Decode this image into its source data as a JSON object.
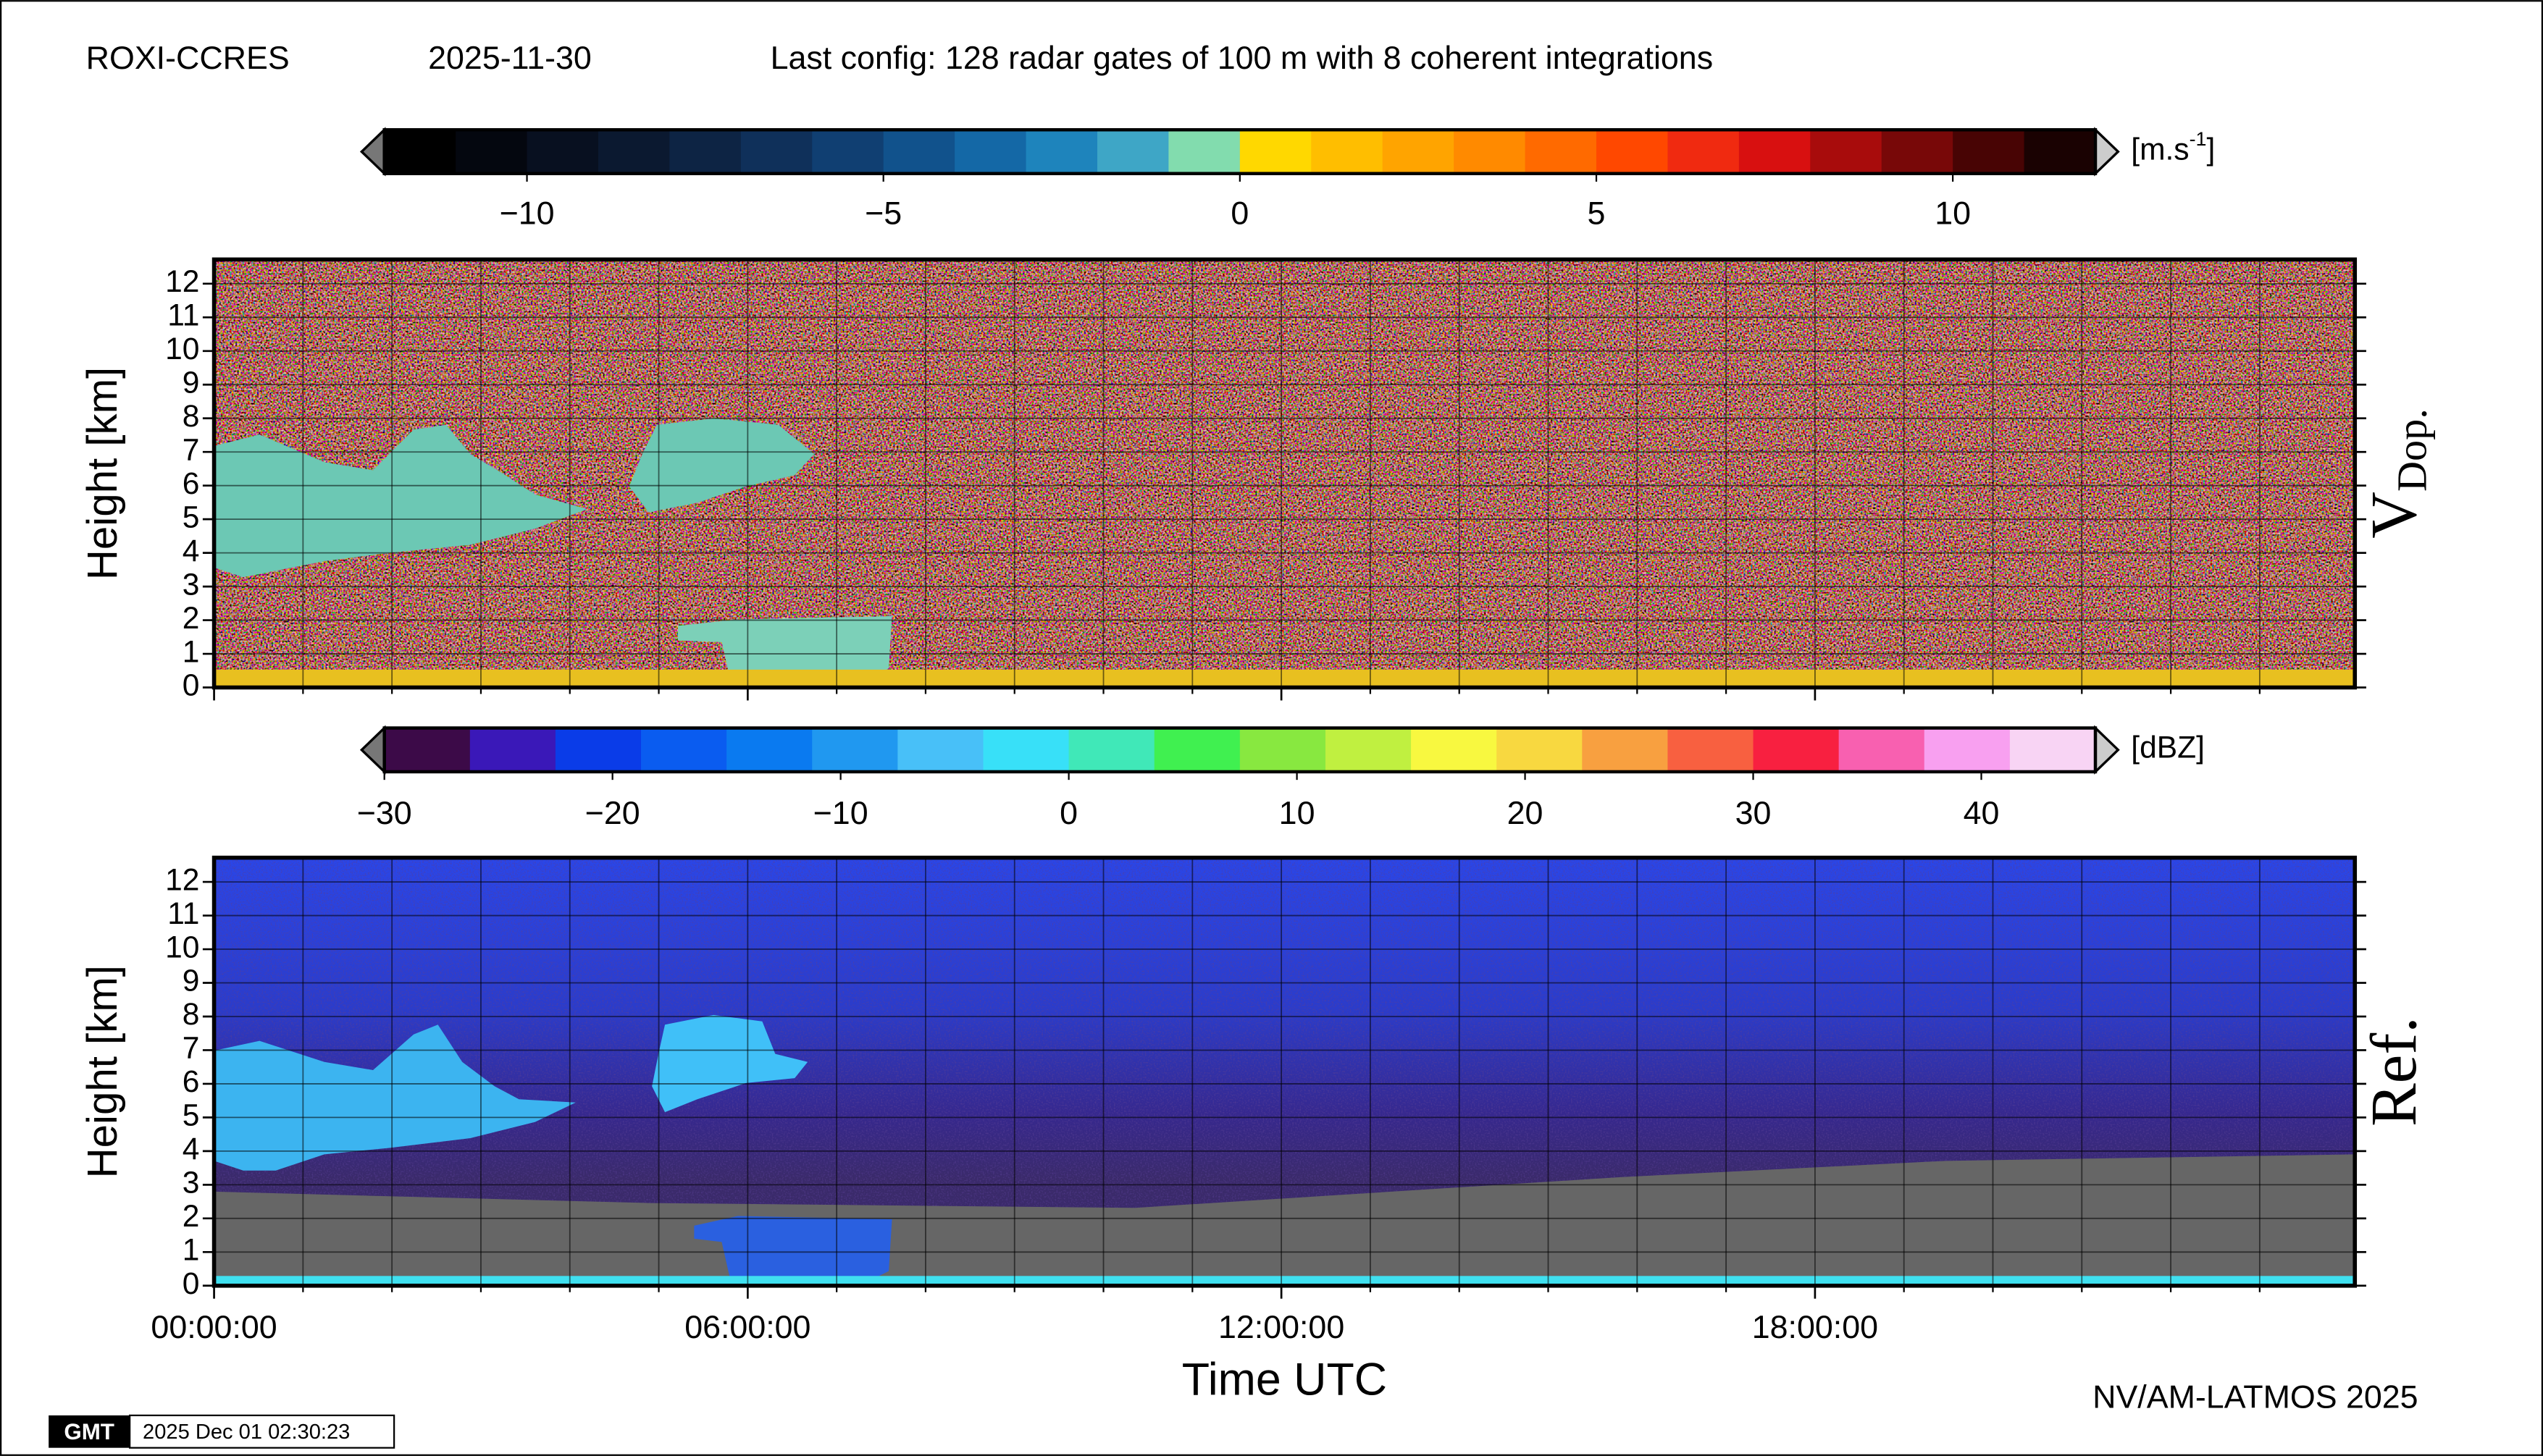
{
  "header": {
    "station": "ROXI-CCRES",
    "date": "2025-11-30",
    "config": "Last config: 128 radar gates of 100 m with 8 coherent integrations"
  },
  "chart_data": [
    {
      "type": "heatmap",
      "ylabel": "Height [km]",
      "side_label": [
        "V",
        "Dop."
      ],
      "xlim": [
        0,
        24.07
      ],
      "xticks": [
        0,
        6,
        12,
        18
      ],
      "xminor_ticks": [
        1,
        2,
        3,
        4,
        5,
        7,
        8,
        9,
        10,
        11,
        13,
        14,
        15,
        16,
        17,
        19,
        20,
        21,
        22,
        23
      ],
      "ylim": [
        0,
        12.72
      ],
      "yticks": [
        0,
        1,
        2,
        3,
        4,
        5,
        6,
        7,
        8,
        9,
        10,
        11,
        12
      ],
      "grid": true,
      "colorbar": {
        "unit": [
          "[m.s",
          "-1",
          "]"
        ],
        "lim": [
          -12,
          12
        ],
        "ticks": [
          {
            "value": -10,
            "label": "−10"
          },
          {
            "value": -5,
            "label": "−5"
          },
          0,
          5,
          10
        ],
        "colors": [
          "#000000",
          "#04070f",
          "#081020",
          "#0b1930",
          "#0d2444",
          "#0f305a",
          "#103f72",
          "#11528c",
          "#1468a6",
          "#1e84bc",
          "#3ea6c6",
          "#82dcae",
          "#ffd800",
          "#ffbe00",
          "#ffa400",
          "#ff8a00",
          "#ff6a00",
          "#ff4800",
          "#f02a10",
          "#d81010",
          "#a80c0c",
          "#780808",
          "#480404",
          "#1a0202"
        ]
      }
    },
    {
      "type": "heatmap",
      "ylabel": "Height [km]",
      "side_label": [
        "Ref."
      ],
      "xlabel": "Time UTC",
      "xlim": [
        0,
        24.07
      ],
      "xticks": [
        {
          "value": 0,
          "label": "00:00:00"
        },
        {
          "value": 6,
          "label": "06:00:00"
        },
        {
          "value": 12,
          "label": "12:00:00"
        },
        {
          "value": 18,
          "label": "18:00:00"
        }
      ],
      "xminor_ticks": [
        1,
        2,
        3,
        4,
        5,
        7,
        8,
        9,
        10,
        11,
        13,
        14,
        15,
        16,
        17,
        19,
        20,
        21,
        22,
        23
      ],
      "ylim": [
        0,
        12.72
      ],
      "yticks": [
        0,
        1,
        2,
        3,
        4,
        5,
        6,
        7,
        8,
        9,
        10,
        11,
        12
      ],
      "grid": true,
      "colorbar": {
        "unit": [
          "[dBZ]"
        ],
        "lim": [
          -30,
          45
        ],
        "ticks": [
          {
            "value": -30,
            "label": "−30"
          },
          {
            "value": -20,
            "label": "−20"
          },
          {
            "value": -10,
            "label": "−10"
          },
          0,
          10,
          20,
          30,
          40
        ],
        "colors": [
          "#3c0a48",
          "#3a18b8",
          "#0a3ce8",
          "#0a5cf0",
          "#0a7af0",
          "#2098f0",
          "#48c0f8",
          "#38e0f8",
          "#40e8b8",
          "#40f050",
          "#88e840",
          "#c0f040",
          "#f8f840",
          "#f8d840",
          "#f8a040",
          "#f86040",
          "#f82040",
          "#f860b0",
          "#f8a0f0",
          "#f8d4f4"
        ]
      }
    }
  ],
  "footer": {
    "credit": "NV/AM-LATMOS 2025",
    "logo": "GMT",
    "timestamp": "2025 Dec 01 02:30:23"
  }
}
